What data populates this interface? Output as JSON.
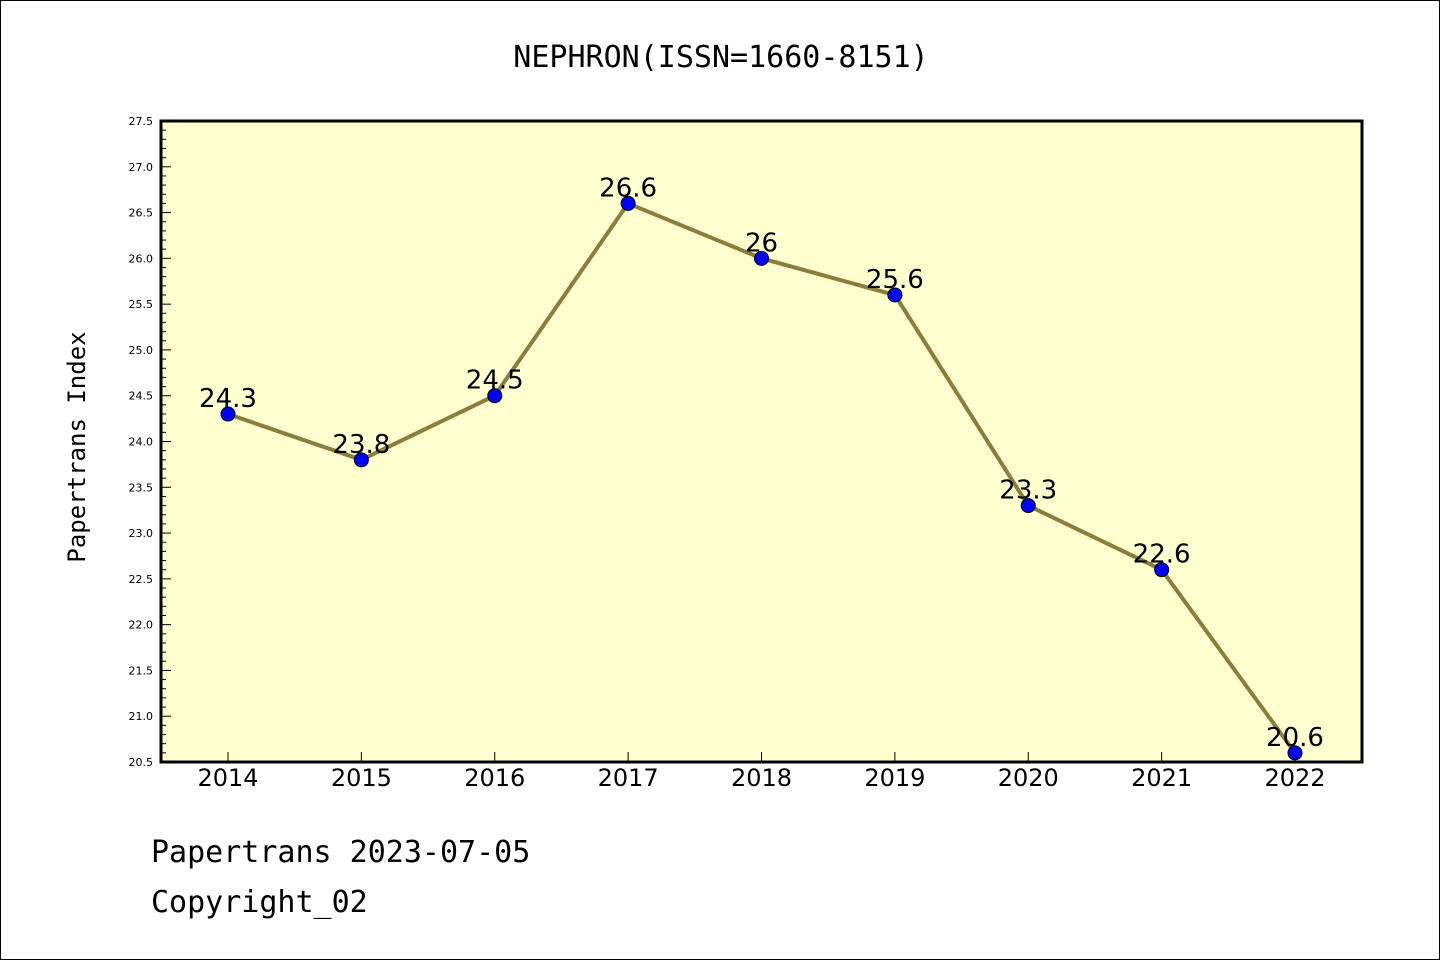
{
  "chart_data": {
    "type": "line",
    "title": "NEPHRON(ISSN=1660-8151)",
    "xlabel": "",
    "ylabel": "Papertrans Index",
    "categories": [
      "2014",
      "2015",
      "2016",
      "2017",
      "2018",
      "2019",
      "2020",
      "2021",
      "2022"
    ],
    "values": [
      24.3,
      23.8,
      24.5,
      26.6,
      26.0,
      25.6,
      23.3,
      22.6,
      20.6
    ],
    "data_labels": [
      "24.3",
      "23.8",
      "24.5",
      "26.6",
      "26",
      "25.6",
      "23.3",
      "22.6",
      "20.6"
    ],
    "ylim": [
      20.5,
      27.5
    ],
    "yticks": [
      "20.5",
      "21.0",
      "21.5",
      "22.0",
      "22.5",
      "23.0",
      "23.5",
      "24.0",
      "24.5",
      "25.0",
      "25.5",
      "26.0",
      "26.5",
      "27.0",
      "27.5"
    ],
    "grid": false,
    "colors": {
      "plot_background": "#ffffd0",
      "line": "#8b7d3a",
      "marker": "#0000ff"
    }
  },
  "footer": {
    "date_text": "Papertrans 2023-07-05",
    "copyright_text": "Copyright_02"
  }
}
